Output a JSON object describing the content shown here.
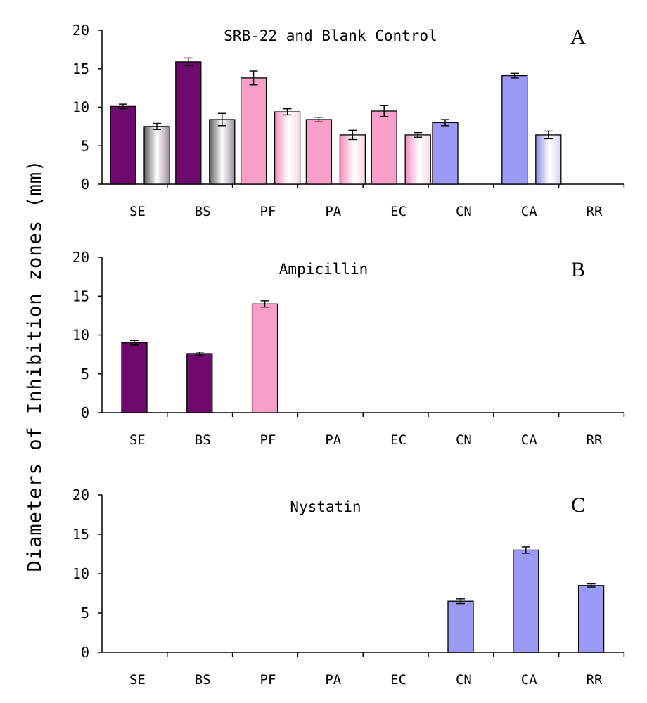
{
  "figure": {
    "ylabel": "Diameters of Inhibition zones (mm)"
  },
  "chart_data": [
    {
      "type": "bar",
      "panel_letter": "A",
      "title": "SRB-22 and Blank Control",
      "categories": [
        "SE",
        "BS",
        "PF",
        "PA",
        "EC",
        "CN",
        "CA",
        "RR"
      ],
      "ylim": [
        0,
        20
      ],
      "yticks": [
        0,
        5,
        10,
        15,
        20
      ],
      "series": [
        {
          "name": "SRB-22",
          "values": [
            10.1,
            15.9,
            13.8,
            8.4,
            9.5,
            8.0,
            14.1,
            null
          ],
          "errors": [
            0.3,
            0.5,
            0.9,
            0.3,
            0.7,
            0.4,
            0.3,
            null
          ]
        },
        {
          "name": "Blank Control",
          "values": [
            7.5,
            8.4,
            9.4,
            null,
            null,
            null,
            6.4,
            null
          ],
          "errors": [
            0.4,
            0.8,
            0.4,
            null,
            null,
            null,
            0.5,
            null
          ]
        }
      ],
      "extra_bars": [
        {
          "category": "PA",
          "value": 6.4,
          "error": 0.6
        },
        {
          "category": "EC",
          "value": 6.4,
          "error": 0.3
        }
      ]
    },
    {
      "type": "bar",
      "panel_letter": "B",
      "title": "Ampicillin",
      "categories": [
        "SE",
        "BS",
        "PF",
        "PA",
        "EC",
        "CN",
        "CA",
        "RR"
      ],
      "ylim": [
        0,
        20
      ],
      "yticks": [
        0,
        5,
        10,
        15,
        20
      ],
      "series": [
        {
          "name": "Ampicillin",
          "values": [
            9.0,
            7.6,
            14.0,
            null,
            null,
            null,
            null,
            null
          ],
          "errors": [
            0.3,
            0.2,
            0.4,
            null,
            null,
            null,
            null,
            null
          ]
        }
      ]
    },
    {
      "type": "bar",
      "panel_letter": "C",
      "title": "Nystatin",
      "categories": [
        "SE",
        "BS",
        "PF",
        "PA",
        "EC",
        "CN",
        "CA",
        "RR"
      ],
      "ylim": [
        0,
        20
      ],
      "yticks": [
        0,
        5,
        10,
        15,
        20
      ],
      "series": [
        {
          "name": "Nystatin",
          "values": [
            null,
            null,
            null,
            null,
            null,
            6.5,
            13.0,
            8.5
          ],
          "errors": [
            null,
            null,
            null,
            null,
            null,
            0.3,
            0.4,
            0.2
          ]
        }
      ]
    }
  ],
  "colors": {
    "purple": "#6e0a6e",
    "pink": "#f79fc6",
    "blue": "#9a9af5",
    "axis": "#000000"
  }
}
